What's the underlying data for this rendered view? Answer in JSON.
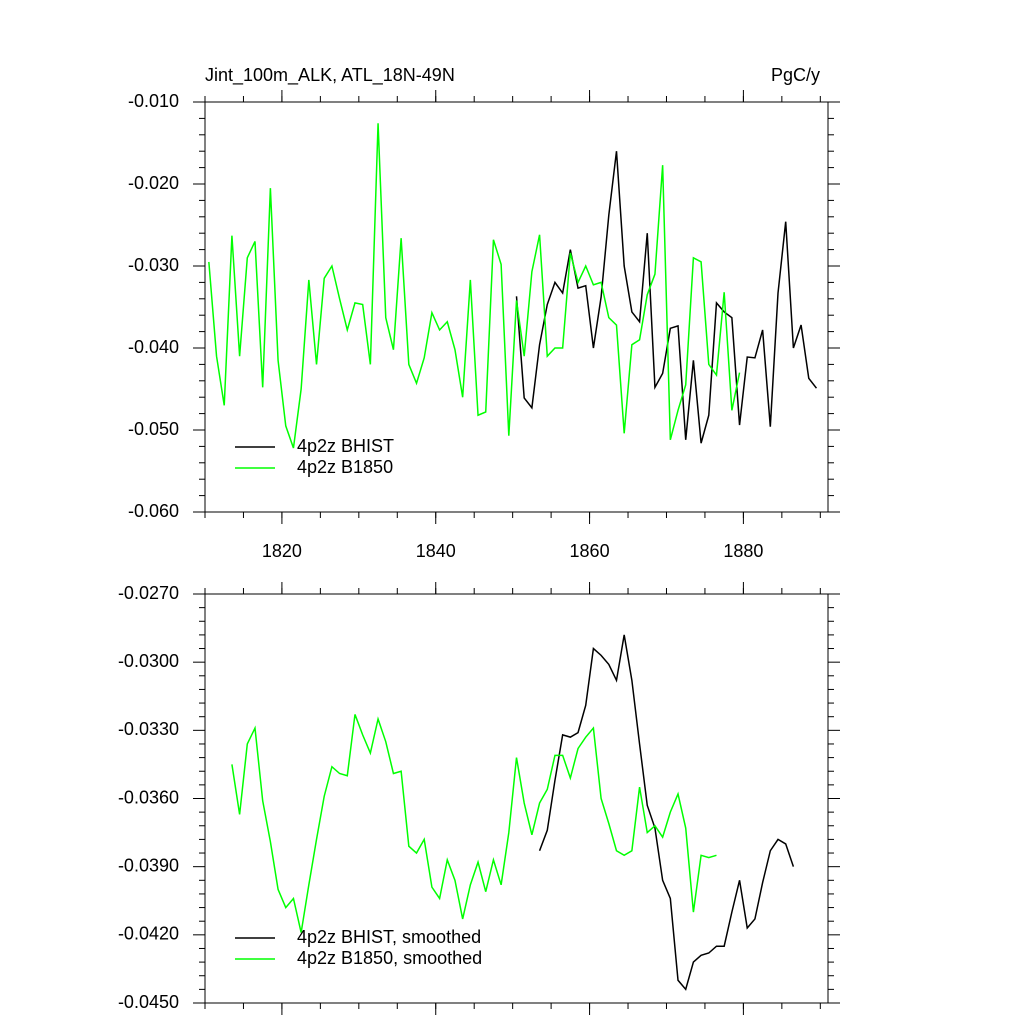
{
  "chart_data": [
    {
      "type": "line",
      "title": "Jint_100m_ALK, ATL_18N-49N",
      "title_right": "PgC/y",
      "legend": "lower left",
      "xlim": [
        1810,
        1891
      ],
      "xticks": [
        1820,
        1840,
        1860,
        1880
      ],
      "ylim": [
        -0.06,
        -0.01
      ],
      "yticks": [
        {
          "value": -0.06,
          "label": "-0.060"
        },
        {
          "value": -0.05,
          "label": "-0.050"
        },
        {
          "value": -0.04,
          "label": "-0.040"
        },
        {
          "value": -0.03,
          "label": "-0.030"
        },
        {
          "value": -0.02,
          "label": "-0.020"
        },
        {
          "value": -0.01,
          "label": "-0.010"
        }
      ],
      "series": [
        {
          "name": "4p2z BHIST",
          "color": "#000000",
          "x": [
            1850.5,
            1851.5,
            1852.5,
            1853.5,
            1854.5,
            1855.5,
            1856.5,
            1857.5,
            1858.5,
            1859.5,
            1860.5,
            1861.5,
            1862.5,
            1863.5,
            1864.5,
            1865.5,
            1866.5,
            1867.5,
            1868.5,
            1869.5,
            1870.5,
            1871.5,
            1872.5,
            1873.5,
            1874.5,
            1875.5,
            1876.5,
            1877.5,
            1878.5,
            1879.5,
            1880.5,
            1881.5,
            1882.5,
            1883.5,
            1884.5,
            1885.5,
            1886.5,
            1887.5,
            1888.5,
            1889.5
          ],
          "values": [
            -0.0337,
            -0.0461,
            -0.0473,
            -0.0396,
            -0.0347,
            -0.032,
            -0.0333,
            -0.028,
            -0.0327,
            -0.0324,
            -0.04,
            -0.0338,
            -0.0238,
            -0.016,
            -0.03,
            -0.0356,
            -0.0368,
            -0.026,
            -0.0448,
            -0.0431,
            -0.0376,
            -0.0373,
            -0.0512,
            -0.0415,
            -0.0516,
            -0.0482,
            -0.0345,
            -0.0356,
            -0.0363,
            -0.0494,
            -0.0411,
            -0.0412,
            -0.0378,
            -0.0496,
            -0.0333,
            -0.0246,
            -0.04,
            -0.0372,
            -0.0437,
            -0.0449
          ]
        },
        {
          "name": "4p2z B1850",
          "color": "#00ff00",
          "x": [
            1810.5,
            1811.5,
            1812.5,
            1813.5,
            1814.5,
            1815.5,
            1816.5,
            1817.5,
            1818.5,
            1819.5,
            1820.5,
            1821.5,
            1822.5,
            1823.5,
            1824.5,
            1825.5,
            1826.5,
            1827.5,
            1828.5,
            1829.5,
            1830.5,
            1831.5,
            1832.5,
            1833.5,
            1834.5,
            1835.5,
            1836.5,
            1837.5,
            1838.5,
            1839.5,
            1840.5,
            1841.5,
            1842.5,
            1843.5,
            1844.5,
            1845.5,
            1846.5,
            1847.5,
            1848.5,
            1849.5,
            1850.5,
            1851.5,
            1852.5,
            1853.5,
            1854.5,
            1855.5,
            1856.5,
            1857.5,
            1858.5,
            1859.5,
            1860.5,
            1861.5,
            1862.5,
            1863.5,
            1864.5,
            1865.5,
            1866.5,
            1867.5,
            1868.5,
            1869.5,
            1870.5,
            1871.5,
            1872.5,
            1873.5,
            1874.5,
            1875.5,
            1876.5,
            1877.5,
            1878.5,
            1879.5
          ],
          "values": [
            -0.0295,
            -0.041,
            -0.047,
            -0.0263,
            -0.041,
            -0.029,
            -0.027,
            -0.0448,
            -0.0205,
            -0.0415,
            -0.0495,
            -0.0522,
            -0.045,
            -0.0317,
            -0.042,
            -0.0315,
            -0.03,
            -0.034,
            -0.0378,
            -0.0345,
            -0.0347,
            -0.042,
            -0.0126,
            -0.0363,
            -0.0402,
            -0.0266,
            -0.042,
            -0.0443,
            -0.0412,
            -0.0357,
            -0.0378,
            -0.0368,
            -0.0402,
            -0.046,
            -0.0317,
            -0.0482,
            -0.0478,
            -0.0268,
            -0.0298,
            -0.0507,
            -0.0342,
            -0.041,
            -0.0307,
            -0.0262,
            -0.041,
            -0.04,
            -0.04,
            -0.0284,
            -0.032,
            -0.03,
            -0.0323,
            -0.032,
            -0.0363,
            -0.0372,
            -0.0504,
            -0.0396,
            -0.039,
            -0.0335,
            -0.031,
            -0.0177,
            -0.0512,
            -0.0476,
            -0.0445,
            -0.029,
            -0.0295,
            -0.042,
            -0.0433,
            -0.0332,
            -0.0476,
            -0.043
          ]
        }
      ]
    },
    {
      "type": "line",
      "legend": "lower left",
      "xlim": [
        1810,
        1891
      ],
      "xticks": [
        1820,
        1840,
        1860,
        1880
      ],
      "ylim": [
        -0.045,
        -0.027
      ],
      "yticks": [
        {
          "value": -0.045,
          "label": "-0.0450"
        },
        {
          "value": -0.042,
          "label": "-0.0420"
        },
        {
          "value": -0.039,
          "label": "-0.0390"
        },
        {
          "value": -0.036,
          "label": "-0.0360"
        },
        {
          "value": -0.033,
          "label": "-0.0330"
        },
        {
          "value": -0.03,
          "label": "-0.0300"
        },
        {
          "value": -0.027,
          "label": "-0.0270"
        }
      ],
      "series": [
        {
          "name": "4p2z BHIST, smoothed",
          "color": "#000000",
          "x": [
            1853.5,
            1854.5,
            1855.5,
            1856.5,
            1857.5,
            1858.5,
            1859.5,
            1860.5,
            1861.5,
            1862.5,
            1863.5,
            1864.5,
            1865.5,
            1866.5,
            1867.5,
            1868.5,
            1869.5,
            1870.5,
            1871.5,
            1872.5,
            1873.5,
            1874.5,
            1875.5,
            1876.5,
            1877.5,
            1878.5,
            1879.5,
            1880.5,
            1881.5,
            1882.5,
            1883.5,
            1884.5,
            1885.5,
            1886.5
          ],
          "values": [
            -0.0383,
            -0.0374,
            -0.0352,
            -0.0332,
            -0.0333,
            -0.0331,
            -0.0319,
            -0.0294,
            -0.0297,
            -0.0301,
            -0.0308,
            -0.0288,
            -0.0308,
            -0.0336,
            -0.0363,
            -0.0373,
            -0.0396,
            -0.0404,
            -0.044,
            -0.0444,
            -0.0432,
            -0.0429,
            -0.0428,
            -0.0425,
            -0.0425,
            -0.041,
            -0.0396,
            -0.0417,
            -0.0413,
            -0.0397,
            -0.0383,
            -0.0378,
            -0.038,
            -0.039
          ]
        },
        {
          "name": "4p2z B1850, smoothed",
          "color": "#00ff00",
          "x": [
            1813.5,
            1814.5,
            1815.5,
            1816.5,
            1817.5,
            1818.5,
            1819.5,
            1820.5,
            1821.5,
            1822.5,
            1823.5,
            1824.5,
            1825.5,
            1826.5,
            1827.5,
            1828.5,
            1829.5,
            1830.5,
            1831.5,
            1832.5,
            1833.5,
            1834.5,
            1835.5,
            1836.5,
            1837.5,
            1838.5,
            1839.5,
            1840.5,
            1841.5,
            1842.5,
            1843.5,
            1844.5,
            1845.5,
            1846.5,
            1847.5,
            1848.5,
            1849.5,
            1850.5,
            1851.5,
            1852.5,
            1853.5,
            1854.5,
            1855.5,
            1856.5,
            1857.5,
            1858.5,
            1859.5,
            1860.5,
            1861.5,
            1862.5,
            1863.5,
            1864.5,
            1865.5,
            1866.5,
            1867.5,
            1868.5,
            1869.5,
            1870.5,
            1871.5,
            1872.5,
            1873.5,
            1874.5,
            1875.5,
            1876.5
          ],
          "values": [
            -0.0345,
            -0.0367,
            -0.0336,
            -0.0329,
            -0.0361,
            -0.0379,
            -0.04,
            -0.0408,
            -0.0404,
            -0.0419,
            -0.0398,
            -0.0378,
            -0.0359,
            -0.0346,
            -0.0349,
            -0.035,
            -0.0323,
            -0.0332,
            -0.034,
            -0.0325,
            -0.0335,
            -0.0349,
            -0.0348,
            -0.0381,
            -0.0384,
            -0.0378,
            -0.0399,
            -0.0404,
            -0.0387,
            -0.0396,
            -0.0413,
            -0.0398,
            -0.0388,
            -0.0401,
            -0.0387,
            -0.0398,
            -0.0375,
            -0.0342,
            -0.0362,
            -0.0376,
            -0.0362,
            -0.0356,
            -0.0341,
            -0.0341,
            -0.0351,
            -0.0338,
            -0.0333,
            -0.0329,
            -0.036,
            -0.0371,
            -0.0383,
            -0.0385,
            -0.0383,
            -0.0355,
            -0.0375,
            -0.0372,
            -0.0377,
            -0.0366,
            -0.0358,
            -0.0373,
            -0.041,
            -0.0385,
            -0.0386,
            -0.0385
          ]
        }
      ]
    }
  ]
}
